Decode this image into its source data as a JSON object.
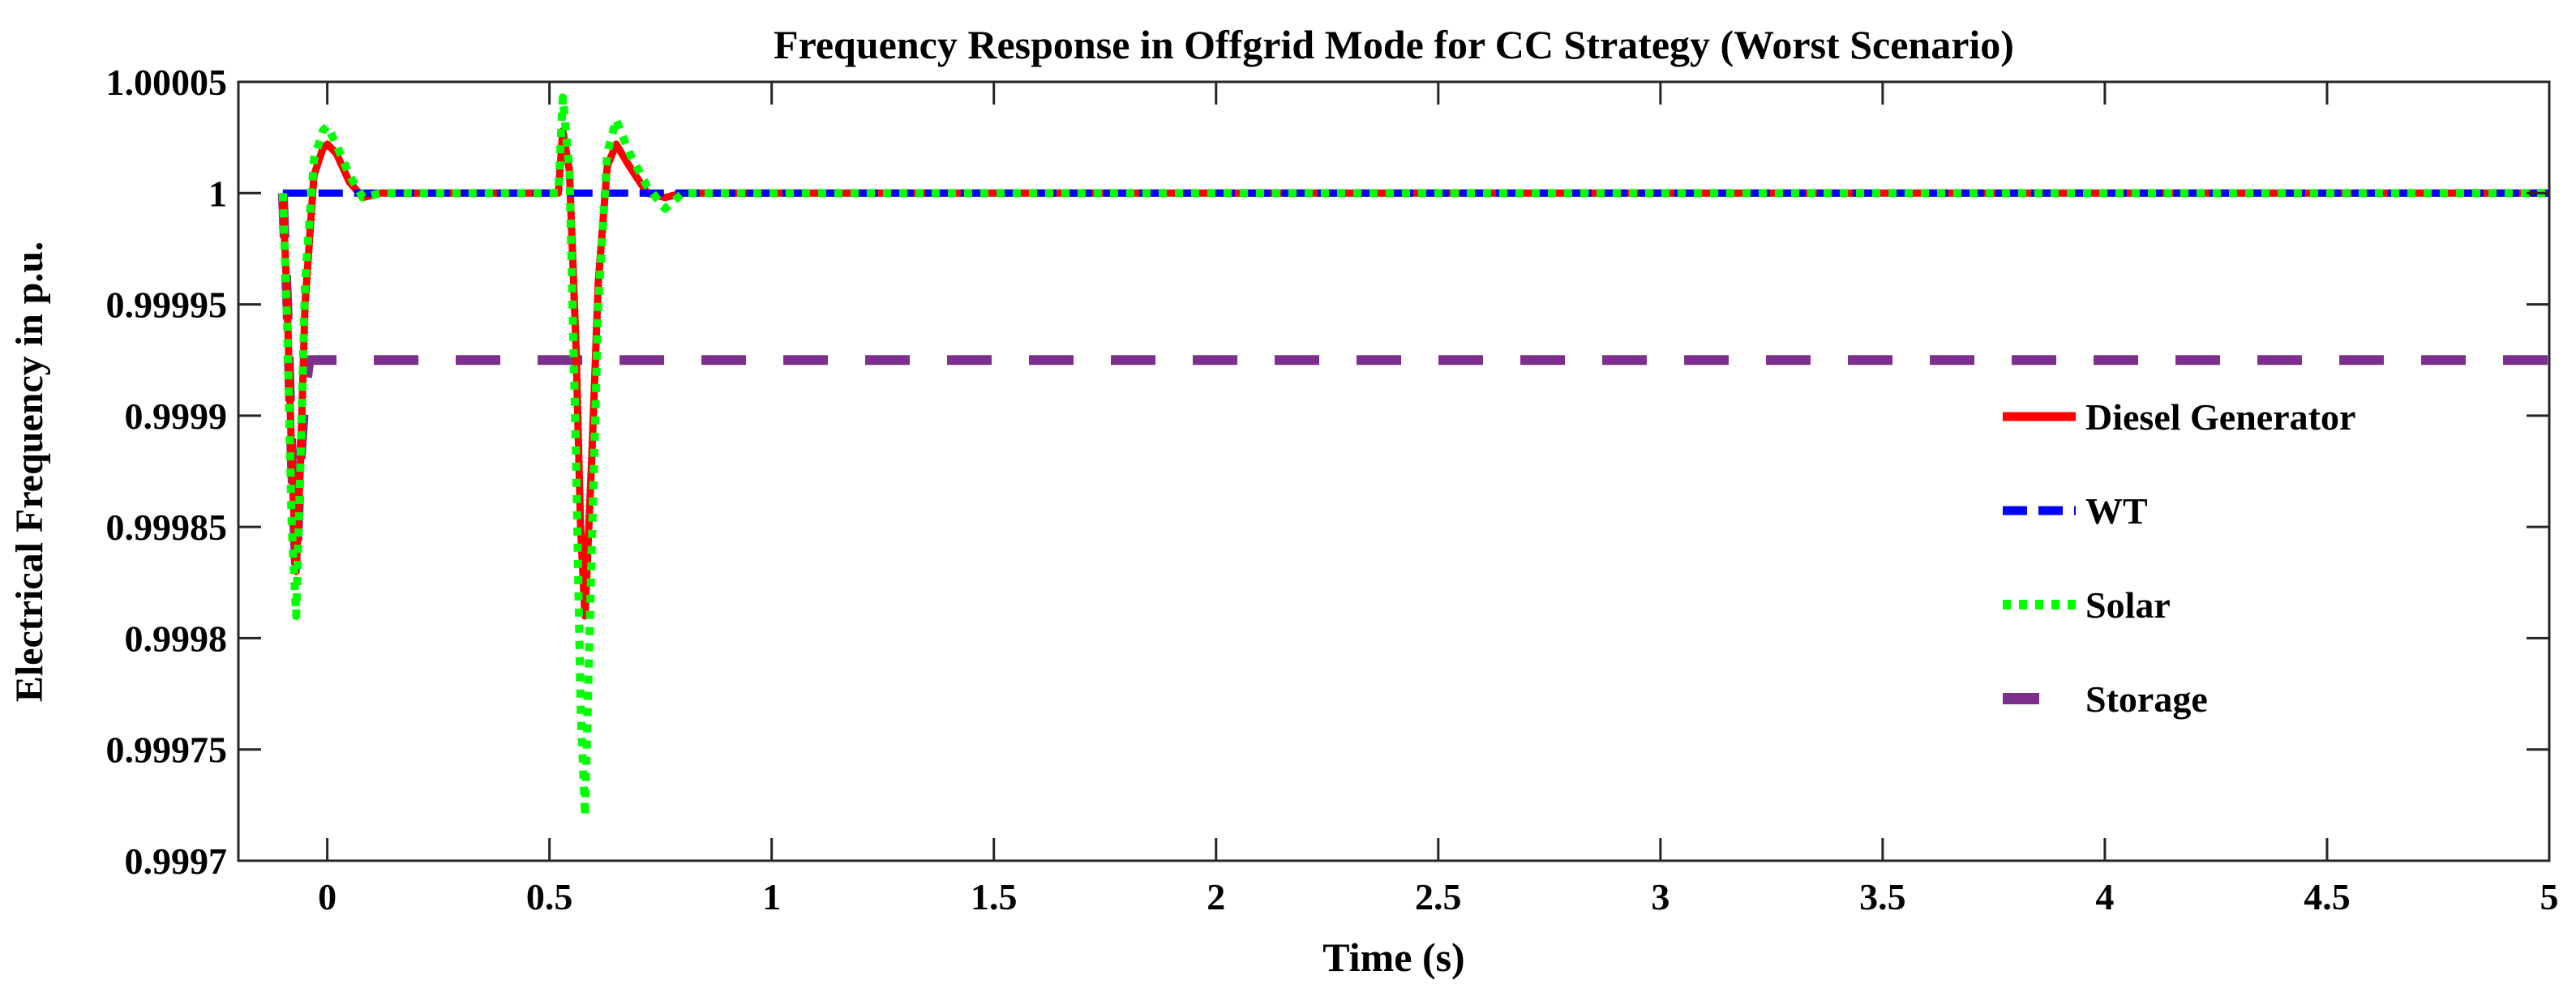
{
  "chart_data": {
    "type": "line",
    "title": "Frequency Response in Offgrid Mode for CC Strategy (Worst Scenario)",
    "xlabel": "Time (s)",
    "ylabel": "Electrical Frequency in p.u.",
    "xlim": [
      -0.2,
      5
    ],
    "ylim": [
      0.9997,
      1.00005
    ],
    "xticks": [
      0,
      0.5,
      1,
      1.5,
      2,
      2.5,
      3,
      3.5,
      4,
      4.5,
      5
    ],
    "xtick_labels": [
      "0",
      "0.5",
      "1",
      "1.5",
      "2",
      "2.5",
      "3",
      "3.5",
      "4",
      "4.5",
      "5"
    ],
    "yticks": [
      0.9997,
      0.99975,
      0.9998,
      0.99985,
      0.9999,
      0.99995,
      1,
      1.00005
    ],
    "ytick_labels": [
      "0.9997",
      "0.99975",
      "0.9998",
      "0.99985",
      "0.9999",
      "0.99995",
      "1",
      "1.00005"
    ],
    "grid": false,
    "legend_position": "right",
    "series": [
      {
        "name": "Diesel Generator",
        "color": "#ff0000",
        "style": "solid",
        "x": [
          -0.1,
          -0.09,
          -0.08,
          -0.07,
          -0.06,
          -0.05,
          -0.03,
          -0.01,
          0,
          0.02,
          0.05,
          0.08,
          0.12,
          0.52,
          0.53,
          0.545,
          0.56,
          0.57,
          0.58,
          0.595,
          0.61,
          0.63,
          0.65,
          0.68,
          0.72,
          0.76,
          0.8,
          5
        ],
        "y": [
          1,
          0.99995,
          0.99988,
          0.99983,
          0.99988,
          0.99995,
          1.000008,
          1.00002,
          1.000022,
          1.000018,
          1.000005,
          0.999998,
          1,
          1,
          1.000028,
          1.00001,
          0.99993,
          0.99985,
          0.99981,
          0.99988,
          0.99996,
          1.000012,
          1.000022,
          1.000012,
          1.0,
          0.999998,
          1,
          1
        ]
      },
      {
        "name": "WT",
        "color": "#0000ff",
        "style": "dashdot",
        "x": [
          -0.1,
          5
        ],
        "y": [
          1,
          1
        ]
      },
      {
        "name": "Solar",
        "color": "#00ff00",
        "style": "dotted",
        "x": [
          -0.1,
          -0.09,
          -0.08,
          -0.07,
          -0.06,
          -0.05,
          -0.03,
          -0.01,
          0,
          0.02,
          0.05,
          0.08,
          0.12,
          0.52,
          0.53,
          0.545,
          0.56,
          0.57,
          0.58,
          0.595,
          0.61,
          0.63,
          0.65,
          0.68,
          0.72,
          0.76,
          0.8,
          5
        ],
        "y": [
          1,
          0.99994,
          0.99985,
          0.99981,
          0.99988,
          0.99996,
          1.000015,
          1.000028,
          1.00003,
          1.000022,
          1.000008,
          0.999998,
          1,
          1,
          1.000043,
          1.00001,
          0.99988,
          0.99977,
          0.99972,
          0.99984,
          0.99995,
          1.000018,
          1.000033,
          1.000018,
          1.000003,
          0.999993,
          1,
          1
        ]
      },
      {
        "name": "Storage",
        "color": "#7e2f8e",
        "style": "dashed",
        "x": [
          -0.1,
          -0.09,
          -0.08,
          -0.07,
          -0.06,
          -0.05,
          -0.04,
          5
        ],
        "y": [
          1,
          0.99995,
          0.99988,
          0.99983,
          0.99988,
          0.99991,
          0.999925,
          0.999925
        ]
      }
    ]
  }
}
